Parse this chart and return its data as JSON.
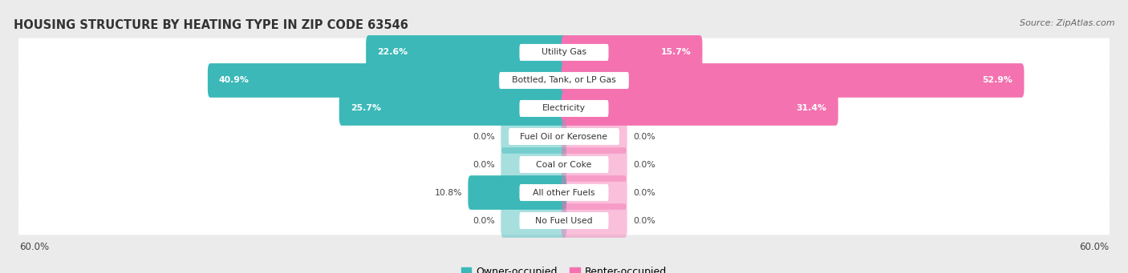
{
  "title": "HOUSING STRUCTURE BY HEATING TYPE IN ZIP CODE 63546",
  "source": "Source: ZipAtlas.com",
  "categories": [
    "Utility Gas",
    "Bottled, Tank, or LP Gas",
    "Electricity",
    "Fuel Oil or Kerosene",
    "Coal or Coke",
    "All other Fuels",
    "No Fuel Used"
  ],
  "owner_values": [
    22.6,
    40.9,
    25.7,
    0.0,
    0.0,
    10.8,
    0.0
  ],
  "renter_values": [
    15.7,
    52.9,
    31.4,
    0.0,
    0.0,
    0.0,
    0.0
  ],
  "owner_color": "#3CB8B8",
  "renter_color": "#F472B0",
  "owner_label": "Owner-occupied",
  "renter_label": "Renter-occupied",
  "axis_limit": 60.0,
  "background_color": "#ebebeb",
  "row_bg_color": "#ffffff",
  "title_fontsize": 10.5,
  "source_fontsize": 8,
  "label_fontsize": 8,
  "zero_bar_width": 7.0
}
